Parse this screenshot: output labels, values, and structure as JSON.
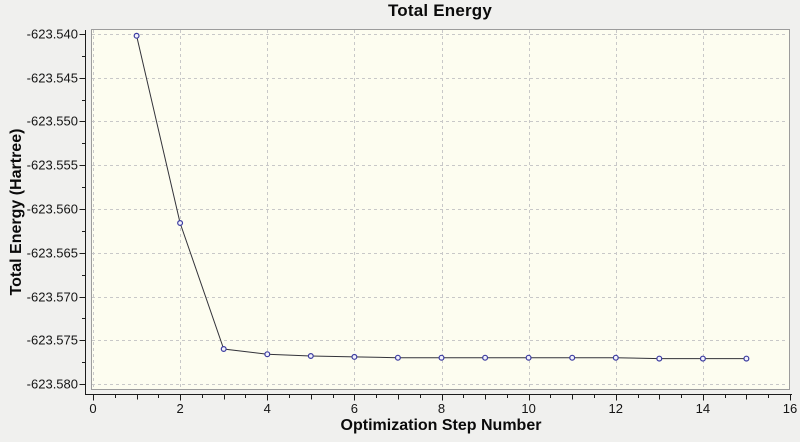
{
  "window": {
    "background_color": "#f0f0ee"
  },
  "chart_data": {
    "type": "line",
    "title": "Total Energy",
    "xlabel": "Optimization Step Number",
    "ylabel": "Total Energy (Hartree)",
    "x": [
      1,
      2,
      3,
      4,
      5,
      6,
      7,
      8,
      9,
      10,
      11,
      12,
      13,
      14,
      15
    ],
    "y": [
      -623.5402,
      -623.5616,
      -623.576,
      -623.5766,
      -623.5768,
      -623.5769,
      -623.577,
      -623.577,
      -623.577,
      -623.577,
      -623.577,
      -623.577,
      -623.5771,
      -623.5771,
      -623.5771
    ],
    "series_name": "Total Energy",
    "xlim": [
      0,
      16
    ],
    "ylim": [
      -623.58,
      -623.54
    ],
    "x_tick_values": [
      0,
      2,
      4,
      6,
      8,
      10,
      12,
      14,
      16
    ],
    "x_tick_labels": [
      "0",
      "2",
      "4",
      "6",
      "8",
      "10",
      "12",
      "14",
      "16"
    ],
    "x_minor_tick_step": 0.5,
    "y_tick_values": [
      -623.54,
      -623.545,
      -623.55,
      -623.555,
      -623.56,
      -623.565,
      -623.57,
      -623.575,
      -623.58
    ],
    "y_tick_labels": [
      "-623.540",
      "-623.545",
      "-623.550",
      "-623.555",
      "-623.560",
      "-623.565",
      "-623.570",
      "-623.575",
      "-623.580"
    ],
    "grid": true,
    "grid_style": "dashed",
    "legend": false,
    "marker": "circle",
    "colors": {
      "outer_background": "#f0f0ee",
      "plot_background": "#fdfdf0",
      "plot_frame": "#9c9c9c",
      "grid": "#c8c8c8",
      "axis": "#1c1c1c",
      "tick_text": "#141414",
      "line": "#33333a",
      "marker_stroke": "#3c3ca0",
      "marker_fill": "#f2f2fc"
    }
  }
}
